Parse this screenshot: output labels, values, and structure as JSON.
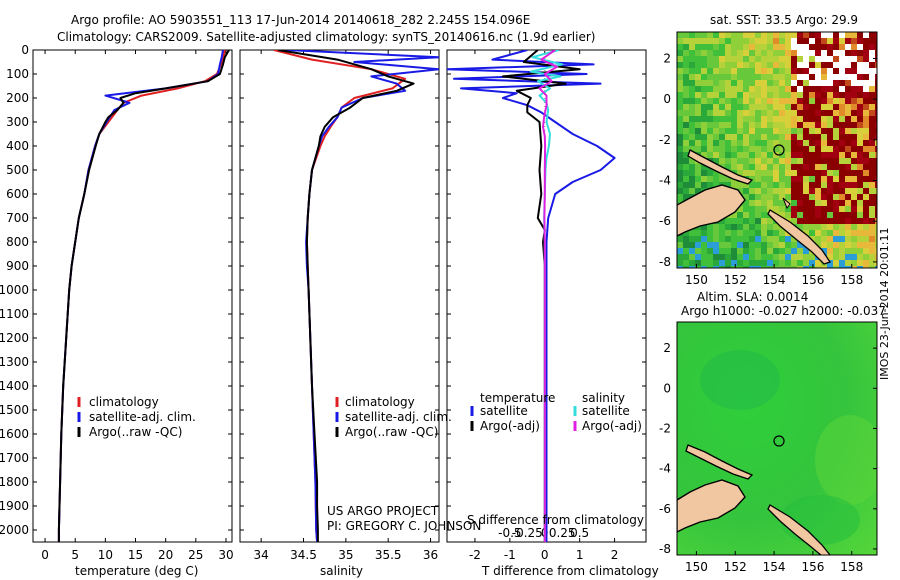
{
  "header": {
    "line1": "Argo profile: AO 5903551_113 17-Jun-2014 20140618_282 2.245S 154.096E",
    "line2": "Climatology: CARS2009. Satellite-adjusted climatology: synTS_20140616.nc (1.9d earlier)"
  },
  "colors": {
    "climatology": "#e02020",
    "satellite": "#1a1ae6",
    "argo": "#000000",
    "sat_salinity": "#33dddd",
    "argo_salinity_adj": "#e020e0"
  },
  "depth_axis": {
    "ylim": [
      0,
      2050
    ],
    "ticks": [
      "0",
      "100",
      "200",
      "300",
      "400",
      "500",
      "600",
      "700",
      "800",
      "900",
      "1000",
      "1100",
      "1200",
      "1300",
      "1400",
      "1500",
      "1600",
      "1700",
      "1800",
      "1900",
      "2000"
    ]
  },
  "chart_data": [
    {
      "type": "line",
      "id": "temperature",
      "xlabel": "temperature (deg C)",
      "xlim": [
        -2,
        31
      ],
      "xticks": [
        "0",
        "5",
        "10",
        "15",
        "20",
        "25",
        "30"
      ],
      "legend": [
        "climatology",
        "satellite-adj. clim.",
        "Argo(..raw -QC)"
      ],
      "series": [
        {
          "name": "climatology",
          "color": "#e02020",
          "depth": [
            0,
            30,
            60,
            100,
            130,
            160,
            190,
            220,
            250,
            300,
            350,
            400,
            500,
            600,
            700,
            800,
            900,
            1000,
            1200,
            1400,
            1600,
            1800,
            2000,
            2050
          ],
          "values": [
            29.8,
            29.6,
            29.2,
            28.5,
            26.5,
            22,
            16,
            13,
            12,
            10.5,
            9,
            8.3,
            7.2,
            6.5,
            5.6,
            5,
            4.4,
            4,
            3.5,
            3,
            2.7,
            2.5,
            2.3,
            2.3
          ]
        },
        {
          "name": "satellite-adj. clim.",
          "color": "#1a1ae6",
          "depth": [
            0,
            30,
            60,
            100,
            130,
            160,
            190,
            220,
            250,
            300,
            350,
            400,
            500,
            600,
            700,
            800,
            900,
            1000,
            1200,
            1400,
            1600,
            1800,
            2000,
            2050
          ],
          "values": [
            29.5,
            29.3,
            29,
            28.7,
            27,
            20,
            10,
            14,
            11.5,
            10.2,
            9,
            8.3,
            7.2,
            6.5,
            5.6,
            5,
            4.4,
            4,
            3.5,
            3,
            2.7,
            2.5,
            2.3,
            2.3
          ]
        },
        {
          "name": "Argo(..raw -QC)",
          "color": "#000000",
          "depth": [
            0,
            30,
            60,
            100,
            130,
            160,
            180,
            200,
            220,
            250,
            280,
            300,
            350,
            400,
            500,
            600,
            700,
            800,
            900,
            1000,
            1200,
            1400,
            1600,
            1800,
            2000,
            2050
          ],
          "values": [
            30.5,
            29.8,
            29.5,
            29,
            27,
            20,
            15,
            12.5,
            13,
            12,
            10.5,
            10,
            9,
            8.4,
            7.3,
            6.5,
            5.6,
            5,
            4.4,
            4,
            3.5,
            3,
            2.7,
            2.5,
            2.3,
            2.3
          ]
        }
      ]
    },
    {
      "type": "line",
      "id": "salinity",
      "xlabel": "salinity",
      "xlim": [
        33.75,
        36.1
      ],
      "xticks": [
        "34",
        "34.5",
        "35",
        "35.5",
        "36"
      ],
      "legend": [
        "climatology",
        "satellite-adj. clim.",
        "Argo(..raw -QC)"
      ],
      "annotation": [
        "US ARGO PROJECT",
        "PI: GREGORY C. JOHNSON"
      ],
      "series": [
        {
          "name": "climatology",
          "color": "#e02020",
          "depth": [
            0,
            40,
            80,
            120,
            160,
            200,
            240,
            280,
            320,
            360,
            400,
            500,
            600,
            700,
            800,
            900,
            1000,
            1200,
            1400,
            1600,
            1800,
            2000,
            2050
          ],
          "values": [
            34.15,
            34.6,
            35.3,
            35.7,
            35.55,
            35.1,
            34.95,
            34.9,
            34.82,
            34.75,
            34.7,
            34.6,
            34.57,
            34.55,
            34.54,
            34.55,
            34.56,
            34.58,
            34.6,
            34.62,
            34.64,
            34.65,
            34.66
          ]
        },
        {
          "name": "satellite-adj. clim.",
          "color": "#1a1ae6",
          "depth": [
            0,
            30,
            50,
            80,
            110,
            140,
            170,
            200,
            240,
            280,
            320,
            360,
            400,
            500,
            600,
            700,
            800,
            900,
            1000,
            1200,
            1400,
            1600,
            1800,
            2000,
            2050
          ],
          "values": [
            34.3,
            36.1,
            35.1,
            36.1,
            35.3,
            35.6,
            35.7,
            35.2,
            34.95,
            34.9,
            34.8,
            34.72,
            34.68,
            34.6,
            34.57,
            34.55,
            34.53,
            34.54,
            34.56,
            34.58,
            34.6,
            34.62,
            34.64,
            34.65,
            34.66
          ]
        },
        {
          "name": "Argo(..raw -QC)",
          "color": "#000000",
          "depth": [
            0,
            40,
            80,
            110,
            140,
            170,
            200,
            240,
            280,
            320,
            360,
            400,
            500,
            600,
            700,
            800,
            900,
            1000,
            1200,
            1400,
            1600,
            1800,
            1900,
            2000,
            2050
          ],
          "values": [
            34.2,
            34.9,
            35.3,
            35.5,
            35.8,
            35.6,
            35.2,
            35.05,
            34.85,
            34.75,
            34.7,
            34.68,
            34.6,
            34.57,
            34.55,
            34.54,
            34.55,
            34.56,
            34.58,
            34.6,
            34.63,
            34.66,
            34.66,
            34.67,
            34.67
          ]
        }
      ]
    },
    {
      "type": "line",
      "id": "difference",
      "xlabel": "T difference from climatology",
      "xlabel2": "S difference from climatology",
      "xlim": [
        -2.8,
        2.9
      ],
      "xticks": [
        "-2",
        "-1",
        "0",
        "1",
        "2"
      ],
      "sticks_values": [
        -0.5,
        -0.25,
        0,
        0.25,
        0.5
      ],
      "sticks": [
        "-0.5",
        "-0.25",
        "0",
        "0.25",
        "0.5"
      ],
      "legend_titles": [
        "temperature",
        "salinity"
      ],
      "legend": [
        "satellite",
        "Argo(-adj)",
        "satellite",
        "Argo(-adj)"
      ],
      "series": [
        {
          "name": "temperature satellite",
          "color": "#1a1ae6",
          "depth": [
            0,
            40,
            60,
            80,
            100,
            120,
            140,
            160,
            180,
            200,
            230,
            260,
            300,
            350,
            400,
            450,
            500,
            550,
            600,
            650,
            700,
            800,
            900,
            1000,
            1200,
            1400,
            1600,
            1800,
            2000,
            2050
          ],
          "values": [
            -0.5,
            -1.5,
            1.4,
            -2.8,
            1.2,
            -2.6,
            1.6,
            -2.4,
            -0.8,
            -1.2,
            -0.5,
            -0.1,
            0.3,
            0.8,
            1.5,
            2.0,
            1.6,
            0.8,
            0.3,
            0.2,
            0.1,
            0.05,
            0.05,
            0.05,
            0.05,
            0.05,
            0.05,
            0.05,
            0.05,
            0.05
          ]
        },
        {
          "name": "temperature Argo(-adj)",
          "color": "#000000",
          "depth": [
            0,
            50,
            80,
            110,
            140,
            170,
            200,
            230,
            260,
            300,
            400,
            500,
            600,
            700,
            750,
            800,
            900,
            1000,
            1200,
            1400,
            1600,
            1800,
            2000,
            2050
          ],
          "values": [
            -0.2,
            -0.6,
            1.0,
            -1.2,
            0.6,
            -0.8,
            -0.4,
            -0.5,
            -0.5,
            -0.15,
            -0.1,
            -0.15,
            -0.1,
            -0.2,
            0,
            -0.05,
            0,
            0,
            0,
            0,
            0,
            0,
            0,
            0
          ]
        },
        {
          "name": "salinity satellite",
          "color": "#33dddd",
          "depth": [
            0,
            30,
            60,
            90,
            110,
            130,
            160,
            190,
            220,
            250,
            300,
            350,
            400,
            450,
            500,
            600,
            700,
            800,
            1000,
            1200,
            1400,
            1600,
            1800,
            2000,
            2050
          ],
          "values": [
            0.4,
            -0.35,
            0.5,
            -0.4,
            0.45,
            -0.2,
            0.15,
            -0.15,
            0.05,
            0.1,
            0.05,
            0.15,
            0.12,
            0.05,
            0.02,
            0,
            -0.02,
            0,
            0,
            0,
            0,
            0,
            0,
            0,
            0
          ]
        },
        {
          "name": "salinity Argo(-adj)",
          "color": "#e020e0",
          "depth": [
            0,
            40,
            70,
            100,
            130,
            160,
            190,
            230,
            280,
            320,
            360,
            400,
            500,
            600,
            700,
            800,
            1000,
            1200,
            1400,
            1600,
            1800,
            2000,
            2050
          ],
          "values": [
            0.3,
            -0.1,
            0.35,
            0,
            0.2,
            -0.15,
            0.05,
            0.05,
            -0.02,
            -0.05,
            0,
            0.01,
            0,
            0,
            -0.01,
            0,
            0,
            0,
            0,
            0,
            0,
            0,
            0
          ]
        }
      ]
    }
  ],
  "maps": {
    "sst": {
      "title": "sat. SST: 33.5 Argo: 29.9",
      "xticks": [
        "150",
        "152",
        "154",
        "156",
        "158"
      ],
      "yticks": [
        "2",
        "0",
        "-2",
        "-4",
        "-6",
        "-8"
      ]
    },
    "sla": {
      "title_line1": "Altim. SLA: 0.0014",
      "title_line2": "Argo h1000: -0.027 h2000: -0.037",
      "xticks": [
        "150",
        "152",
        "154",
        "156",
        "158"
      ],
      "yticks": [
        "2",
        "0",
        "-2",
        "-4",
        "-6",
        "-8"
      ]
    }
  },
  "footer_stamp": "IMOS 23-Jun-2014 20:01:11"
}
